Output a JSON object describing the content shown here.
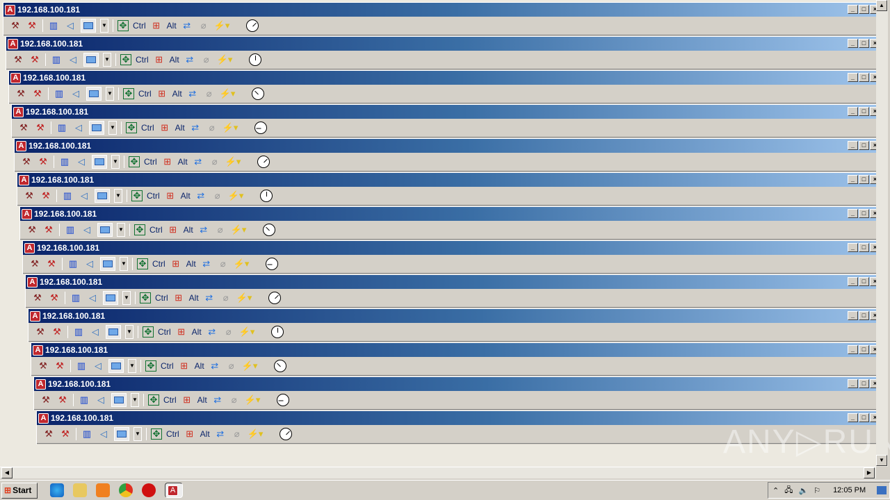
{
  "window_title": "192.168.100.181",
  "window_count": 13,
  "toolbar": {
    "ctrl_label": "Ctrl",
    "alt_label": "Alt"
  },
  "taskbar": {
    "start_label": "Start",
    "clock": "12:05 PM"
  },
  "watermark": "ANY▷RUN",
  "colors": {
    "titlebar_start": "#0a246a",
    "titlebar_end": "#a6caf0",
    "app_icon": "#c0282e"
  }
}
